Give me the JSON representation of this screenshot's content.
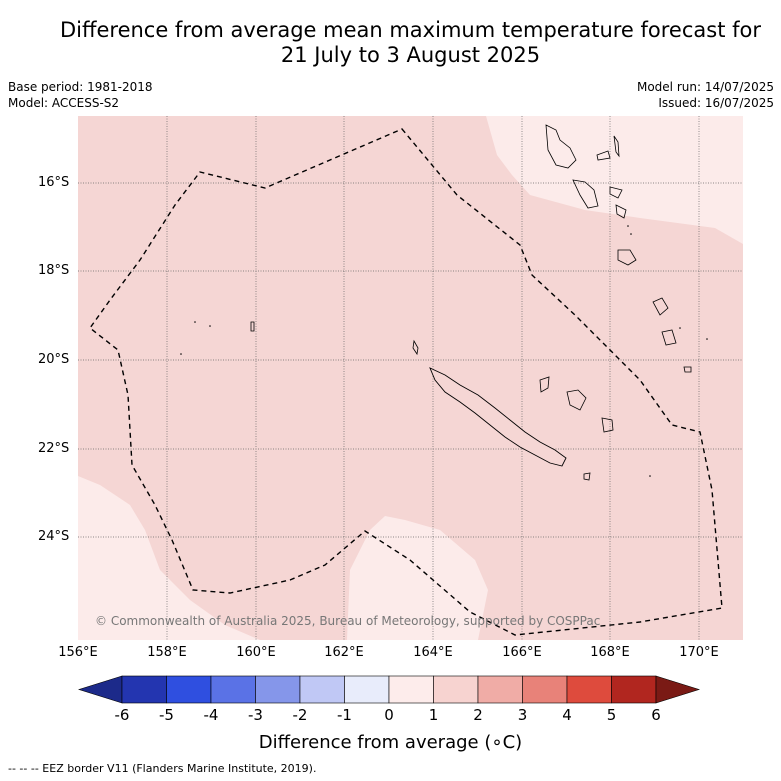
{
  "title_line1": "Difference from average mean maximum temperature forecast for",
  "title_line2": "21 July to 3 August 2025",
  "base_period": "Base period: 1981-2018",
  "model": "Model: ACCESS-S2",
  "model_run": "Model run: 14/07/2025",
  "issued": "Issued: 16/07/2025",
  "map": {
    "lat_labels": [
      "16°S",
      "18°S",
      "20°S",
      "22°S",
      "24°S"
    ],
    "lon_labels": [
      "156°E",
      "158°E",
      "160°E",
      "162°E",
      "164°E",
      "166°E",
      "168°E",
      "170°E"
    ],
    "credit": "© Commonwealth of Australia 2025, Bureau of Meteorology, supported by COSPPac",
    "region_values_c": [
      "0 to 1",
      "1 to 2"
    ]
  },
  "colorbar": {
    "ticks": [
      "-6",
      "-5",
      "-4",
      "-3",
      "-2",
      "-1",
      "0",
      "1",
      "2",
      "3",
      "4",
      "5",
      "6"
    ],
    "colors": [
      "#1c2a8a",
      "#2335b0",
      "#2f4fe0",
      "#5a72e6",
      "#8596ea",
      "#c0c8f5",
      "#e8ecfb",
      "#fdeceb",
      "#f7d3d0",
      "#f0aca6",
      "#e88279",
      "#de4b3d",
      "#b1261f",
      "#7a1a15"
    ],
    "title": "Difference from average (∘C)"
  },
  "footnote": "--  --  -- EEZ border V11 (Flanders Marine Institute, 2019)."
}
